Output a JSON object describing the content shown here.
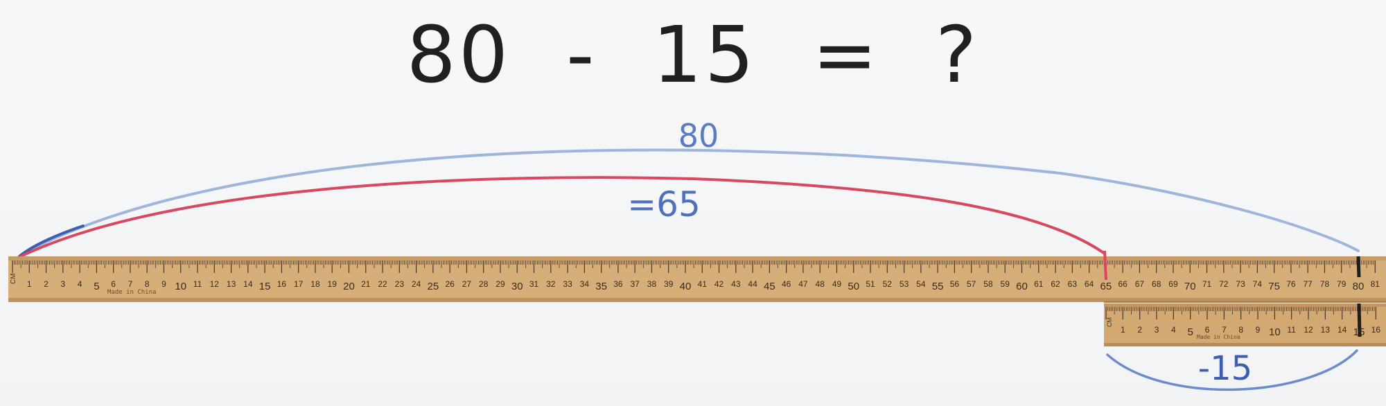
{
  "equation": {
    "left_operand": "80",
    "operator": "-",
    "right_operand": "15",
    "equals": "=",
    "unknown": "?"
  },
  "annotations": {
    "total_label": "80",
    "result_label": "=65",
    "subtract_label": "-15"
  },
  "main_ruler": {
    "unit_label": "CM",
    "maker_text": "Made in China",
    "min": 0,
    "max": 81
  },
  "small_ruler": {
    "unit_label": "CM",
    "maker_text": "Made in China",
    "min": 0,
    "max": 16
  },
  "colors": {
    "blue_ink": "#5b7cc4",
    "light_blue_arc": "#9fb5dc",
    "red_arc": "#d9485f",
    "wood": "#d6ae79",
    "wood_dark": "#c09260",
    "tick": "#4a3520",
    "black_ink": "#1e1e1e"
  }
}
